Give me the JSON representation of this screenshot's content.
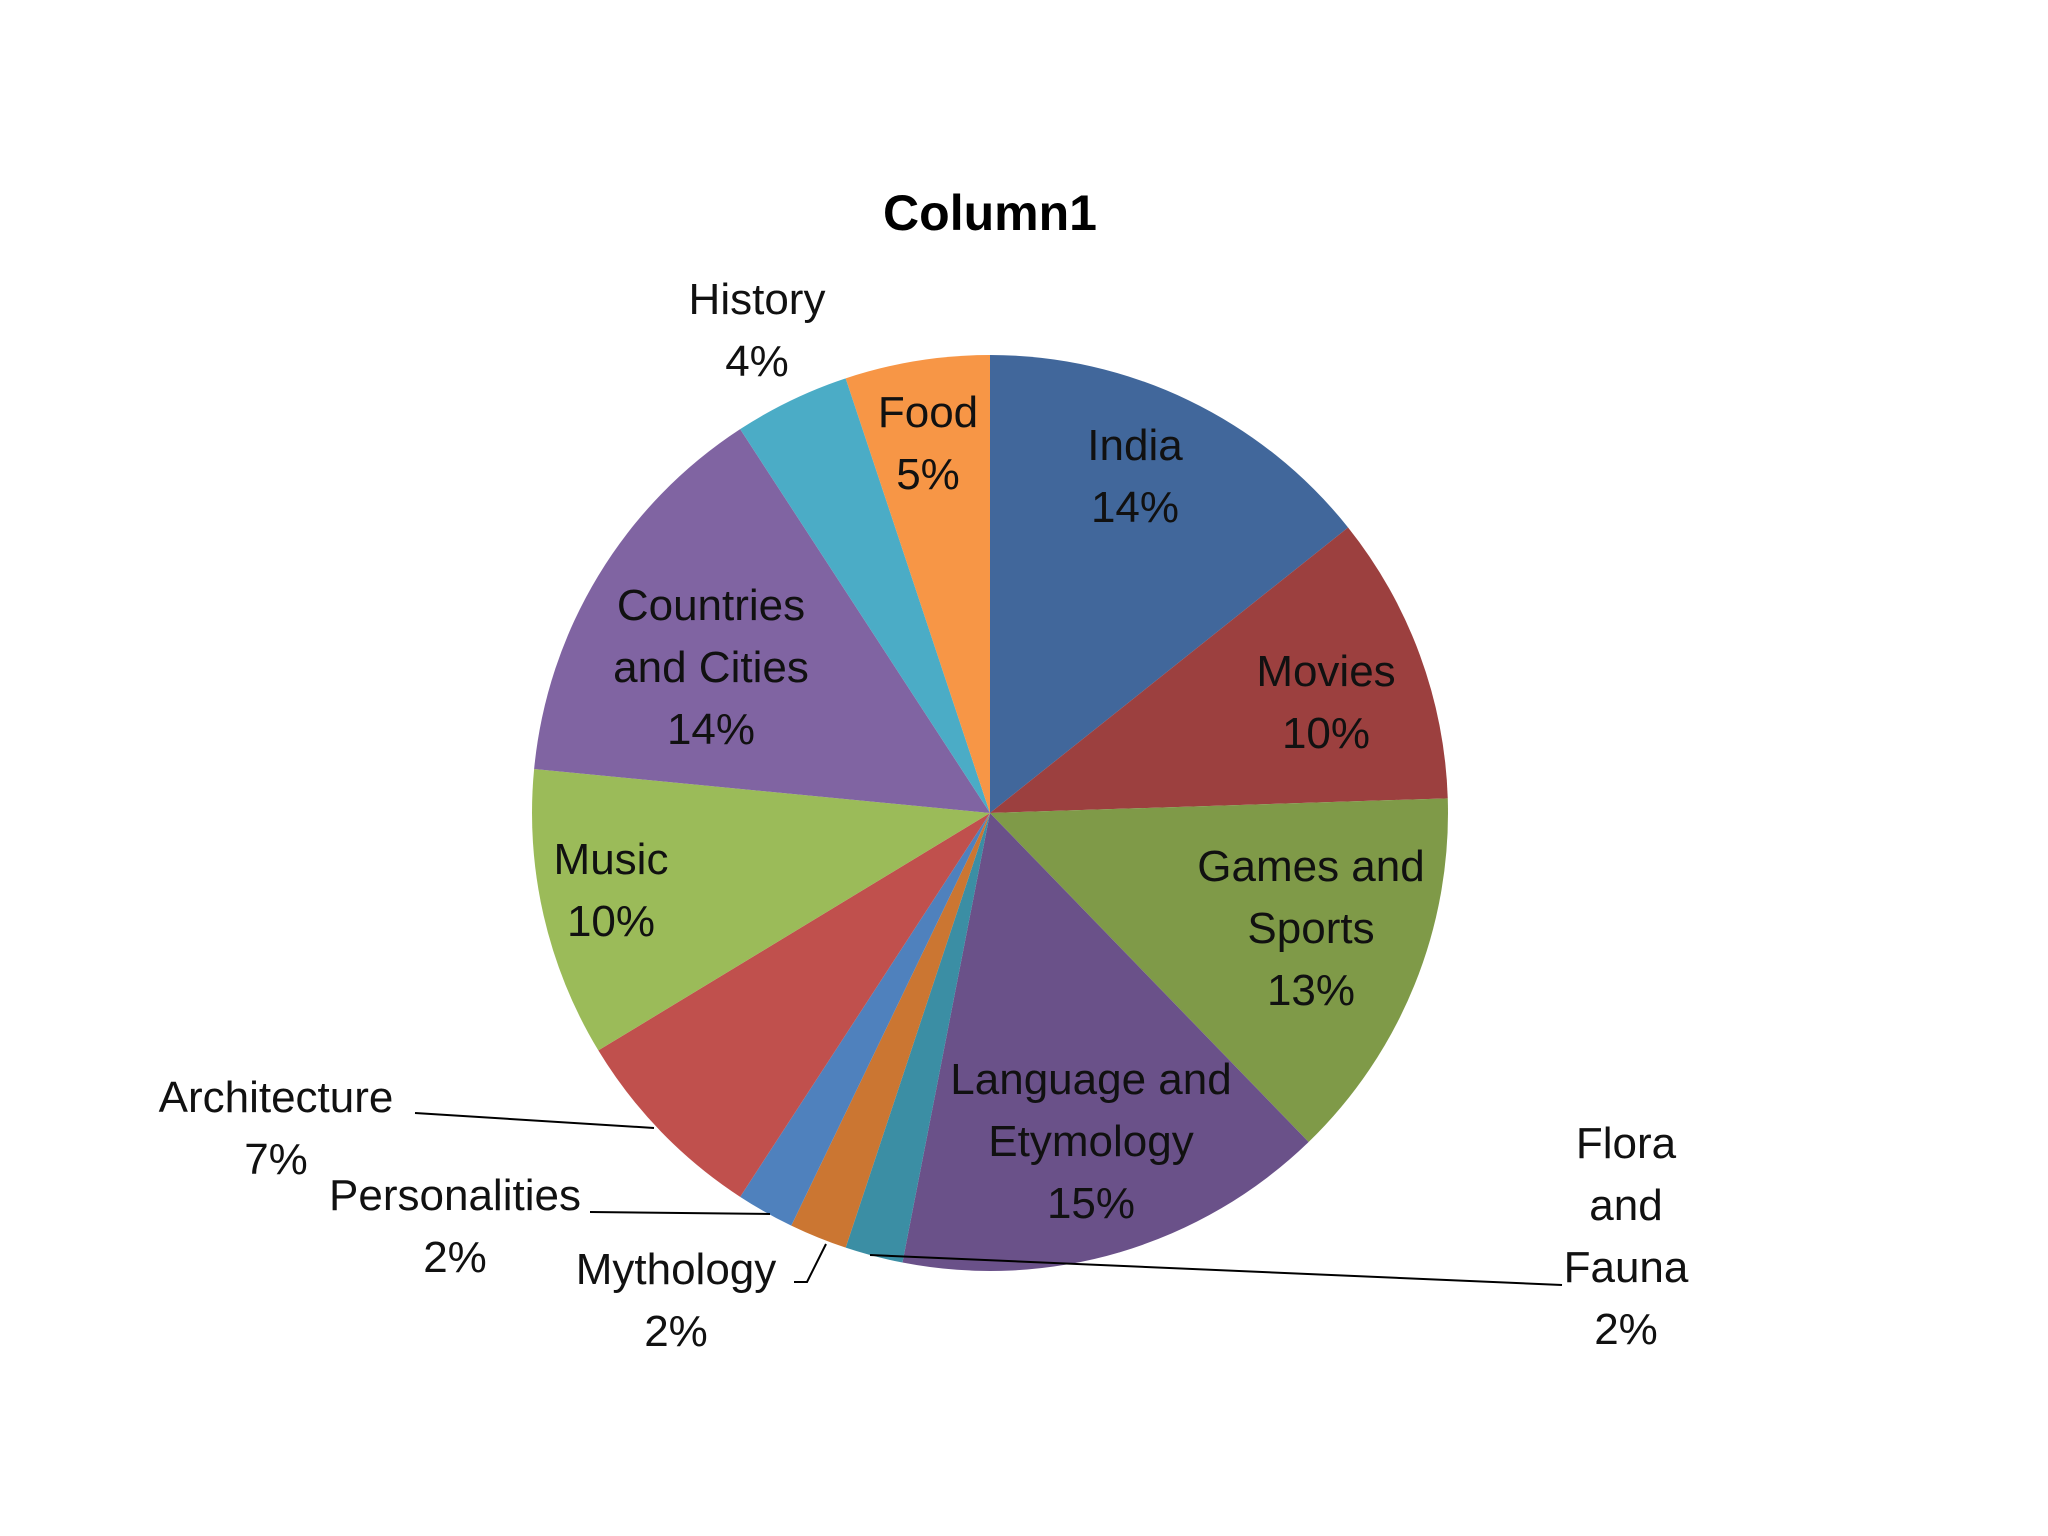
{
  "chart_data": {
    "type": "pie",
    "title": "Column1",
    "categories": [
      "India",
      "Movies",
      "Games and Sports",
      "Language and Etymology",
      "Flora and Fauna",
      "Mythology",
      "Personalities",
      "Architecture",
      "Music",
      "Countries and Cities",
      "History",
      "Food"
    ],
    "values": [
      14,
      10,
      13,
      15,
      2,
      2,
      2,
      7,
      10,
      14,
      4,
      5
    ],
    "labels": [
      [
        "India",
        "14%"
      ],
      [
        "Movies",
        "10%"
      ],
      [
        "Games and",
        "Sports",
        "13%"
      ],
      [
        "Language and",
        "Etymology",
        "15%"
      ],
      [
        "Flora",
        "and",
        "Fauna",
        "2%"
      ],
      [
        "Mythology",
        "2%"
      ],
      [
        "Personalities",
        "2%"
      ],
      [
        "Architecture",
        "7%"
      ],
      [
        "Music",
        "10%"
      ],
      [
        "Countries",
        "and Cities",
        "14%"
      ],
      [
        "History",
        "4%"
      ],
      [
        "Food",
        "5%"
      ]
    ],
    "colors": [
      "#41679b",
      "#9c403f",
      "#7f9a48",
      "#6a5189",
      "#3b8ea4",
      "#cb7632",
      "#4f81bd",
      "#c0504d",
      "#9bbb59",
      "#8064a2",
      "#4bacc6",
      "#f79646"
    ],
    "legend": "none"
  }
}
